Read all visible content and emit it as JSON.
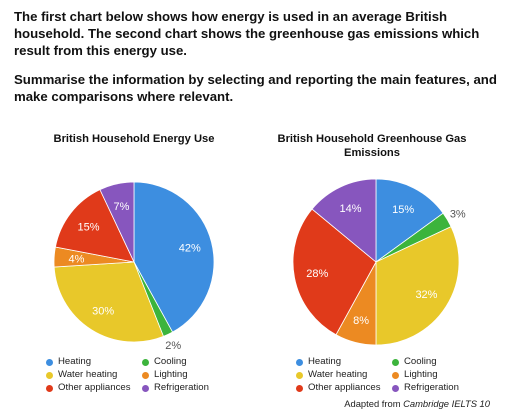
{
  "prompt": {
    "para1": "The first chart below shows how energy is used in an average British household. The second chart shows the greenhouse gas emissions which result from this energy use.",
    "para2": "Summarise the information by selecting and reporting the main features, and make comparisons where relevant."
  },
  "source": {
    "prefix": "Adapted from ",
    "book": "Cambridge IELTS 10"
  },
  "colors": {
    "Heating": "#3d8ee0",
    "Cooling": "#3cb43c",
    "Water heating": "#e8c82a",
    "Lighting": "#ec8a22",
    "Other appliances": "#e03a1a",
    "Refrigeration": "#8756be"
  },
  "chart_data": [
    {
      "type": "pie",
      "title": "British Household Energy Use",
      "legend_position": "bottom",
      "categories": [
        "Heating",
        "Cooling",
        "Water heating",
        "Lighting",
        "Other appliances",
        "Refrigeration"
      ],
      "values": [
        42,
        2,
        30,
        4,
        15,
        7
      ],
      "labels": [
        "42%",
        "2%",
        "30%",
        "4%",
        "15%",
        "7%"
      ]
    },
    {
      "type": "pie",
      "title": "British Household Greenhouse Gas Emissions",
      "legend_position": "bottom",
      "categories": [
        "Heating",
        "Cooling",
        "Water heating",
        "Lighting",
        "Other appliances",
        "Refrigeration"
      ],
      "values": [
        15,
        3,
        32,
        8,
        28,
        14
      ],
      "labels": [
        "15%",
        "3%",
        "32%",
        "8%",
        "28%",
        "14%"
      ]
    }
  ]
}
